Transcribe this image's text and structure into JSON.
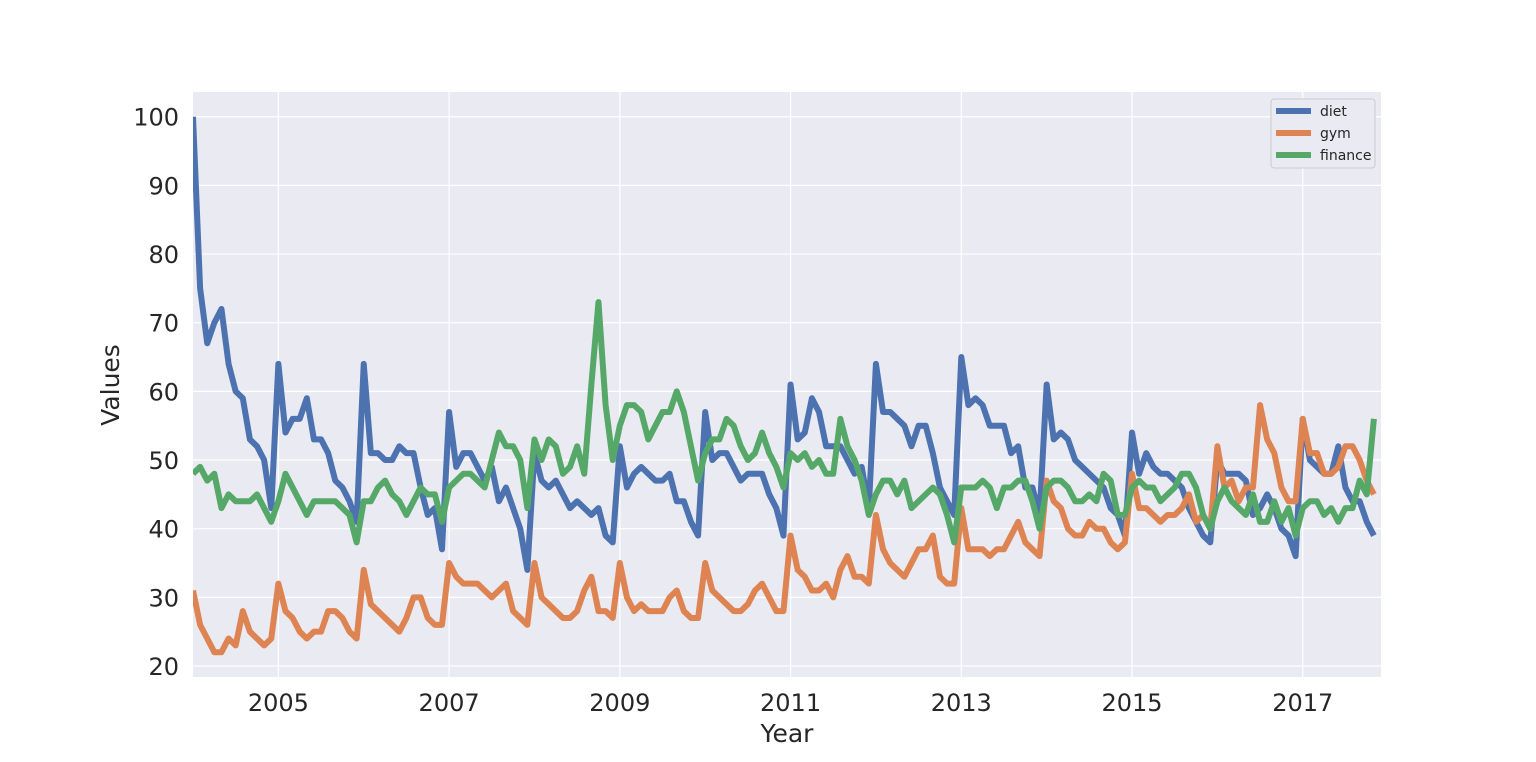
{
  "chart_data": {
    "type": "line",
    "title": "",
    "xlabel": "Year",
    "ylabel": "Values",
    "xlim": [
      2004.0,
      2017.9167
    ],
    "ylim": [
      18.4,
      103.6
    ],
    "grid": true,
    "legend_position": "top-right",
    "x_ticks": [
      2005,
      2007,
      2009,
      2011,
      2013,
      2015,
      2017
    ],
    "x_tick_labels": [
      "2005",
      "2007",
      "2009",
      "2011",
      "2013",
      "2015",
      "2017"
    ],
    "y_ticks": [
      20,
      30,
      40,
      50,
      60,
      70,
      80,
      90,
      100
    ],
    "y_tick_labels": [
      "20",
      "30",
      "40",
      "50",
      "60",
      "70",
      "80",
      "90",
      "100"
    ],
    "x_start": 2004.0,
    "x_step_months": 1,
    "series": [
      {
        "name": "diet",
        "color": "#4c72b0",
        "values": [
          100,
          75,
          67,
          70,
          72,
          64,
          60,
          59,
          53,
          52,
          50,
          43,
          64,
          54,
          56,
          56,
          59,
          53,
          53,
          51,
          47,
          46,
          44,
          41,
          64,
          51,
          51,
          50,
          50,
          52,
          51,
          51,
          46,
          42,
          43,
          37,
          57,
          49,
          51,
          51,
          49,
          47,
          49,
          44,
          46,
          43,
          40,
          34,
          51,
          47,
          46,
          47,
          45,
          43,
          44,
          43,
          42,
          43,
          39,
          38,
          52,
          46,
          48,
          49,
          48,
          47,
          47,
          48,
          44,
          44,
          41,
          39,
          57,
          50,
          51,
          51,
          49,
          47,
          48,
          48,
          48,
          45,
          43,
          39,
          61,
          53,
          54,
          59,
          57,
          52,
          52,
          52,
          50,
          48,
          49,
          43,
          64,
          57,
          57,
          56,
          55,
          52,
          55,
          55,
          51,
          46,
          44,
          42,
          65,
          58,
          59,
          58,
          55,
          55,
          55,
          51,
          52,
          46,
          46,
          42,
          61,
          53,
          54,
          53,
          50,
          49,
          48,
          47,
          46,
          43,
          42,
          39,
          54,
          48,
          51,
          49,
          48,
          48,
          47,
          46,
          43,
          41,
          39,
          38,
          50,
          48,
          48,
          48,
          47,
          42,
          43,
          45,
          43,
          40,
          39,
          36,
          56,
          50,
          49,
          48,
          48,
          52,
          46,
          44,
          44,
          41,
          39
        ]
      },
      {
        "name": "gym",
        "color": "#dd8452",
        "values": [
          31,
          26,
          24,
          22,
          22,
          24,
          23,
          28,
          25,
          24,
          23,
          24,
          32,
          28,
          27,
          25,
          24,
          25,
          25,
          28,
          28,
          27,
          25,
          24,
          34,
          29,
          28,
          27,
          26,
          25,
          27,
          30,
          30,
          27,
          26,
          26,
          35,
          33,
          32,
          32,
          32,
          31,
          30,
          31,
          32,
          28,
          27,
          26,
          35,
          30,
          29,
          28,
          27,
          27,
          28,
          31,
          33,
          28,
          28,
          27,
          35,
          30,
          28,
          29,
          28,
          28,
          28,
          30,
          31,
          28,
          27,
          27,
          35,
          31,
          30,
          29,
          28,
          28,
          29,
          31,
          32,
          30,
          28,
          28,
          39,
          34,
          33,
          31,
          31,
          32,
          30,
          34,
          36,
          33,
          33,
          32,
          42,
          37,
          35,
          34,
          33,
          35,
          37,
          37,
          39,
          33,
          32,
          32,
          43,
          37,
          37,
          37,
          36,
          37,
          37,
          39,
          41,
          38,
          37,
          36,
          47,
          44,
          43,
          40,
          39,
          39,
          41,
          40,
          40,
          38,
          37,
          38,
          48,
          43,
          43,
          42,
          41,
          42,
          42,
          43,
          45,
          41,
          42,
          40,
          52,
          46,
          47,
          44,
          46,
          46,
          58,
          53,
          51,
          46,
          44,
          44,
          56,
          51,
          51,
          48,
          48,
          49,
          52,
          52,
          50,
          47,
          45
        ]
      },
      {
        "name": "finance",
        "color": "#55a868",
        "values": [
          48,
          49,
          47,
          48,
          43,
          45,
          44,
          44,
          44,
          45,
          43,
          41,
          44,
          48,
          46,
          44,
          42,
          44,
          44,
          44,
          44,
          43,
          42,
          38,
          44,
          44,
          46,
          47,
          45,
          44,
          42,
          44,
          46,
          45,
          45,
          41,
          46,
          47,
          48,
          48,
          47,
          46,
          50,
          54,
          52,
          52,
          50,
          43,
          53,
          50,
          53,
          52,
          48,
          49,
          52,
          48,
          61,
          73,
          58,
          50,
          55,
          58,
          58,
          57,
          53,
          55,
          57,
          57,
          60,
          57,
          52,
          47,
          51,
          53,
          53,
          56,
          55,
          52,
          50,
          51,
          54,
          51,
          49,
          46,
          51,
          50,
          51,
          49,
          50,
          48,
          48,
          56,
          52,
          50,
          47,
          42,
          45,
          47,
          47,
          45,
          47,
          43,
          44,
          45,
          46,
          45,
          42,
          38,
          46,
          46,
          46,
          47,
          46,
          43,
          46,
          46,
          47,
          47,
          44,
          40,
          46,
          47,
          47,
          46,
          44,
          44,
          45,
          44,
          48,
          47,
          42,
          42,
          46,
          47,
          46,
          46,
          44,
          45,
          46,
          48,
          48,
          46,
          42,
          40,
          44,
          46,
          44,
          43,
          42,
          45,
          41,
          41,
          44,
          41,
          43,
          39,
          43,
          44,
          44,
          42,
          43,
          41,
          43,
          43,
          47,
          45,
          56
        ]
      }
    ]
  }
}
